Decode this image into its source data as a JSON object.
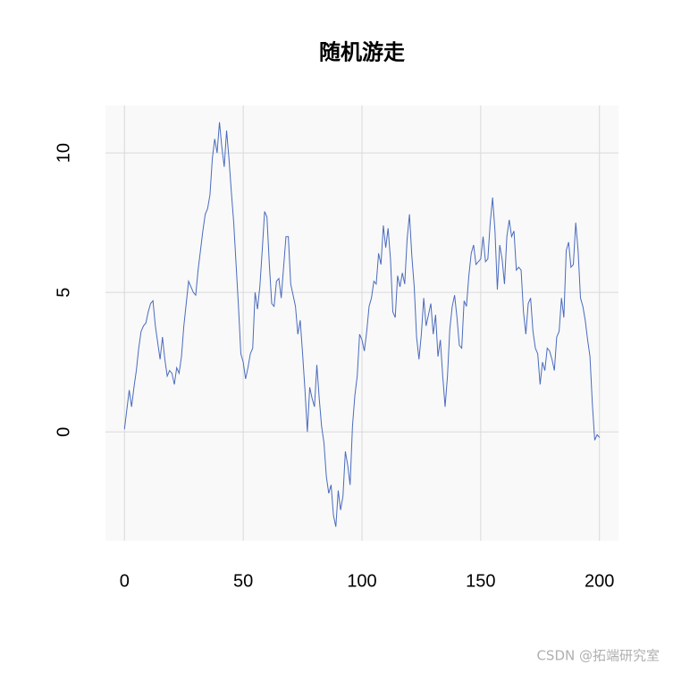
{
  "chart_data": {
    "type": "line",
    "title": "随机游走",
    "annotation": "CSDN @拓端研究室",
    "x": [
      0,
      1,
      2,
      3,
      4,
      5,
      6,
      7,
      8,
      9,
      10,
      11,
      12,
      13,
      14,
      15,
      16,
      17,
      18,
      19,
      20,
      21,
      22,
      23,
      24,
      25,
      26,
      27,
      28,
      29,
      30,
      31,
      32,
      33,
      34,
      35,
      36,
      37,
      38,
      39,
      40,
      41,
      42,
      43,
      44,
      45,
      46,
      47,
      48,
      49,
      50,
      51,
      52,
      53,
      54,
      55,
      56,
      57,
      58,
      59,
      60,
      61,
      62,
      63,
      64,
      65,
      66,
      67,
      68,
      69,
      70,
      71,
      72,
      73,
      74,
      75,
      76,
      77,
      78,
      79,
      80,
      81,
      82,
      83,
      84,
      85,
      86,
      87,
      88,
      89,
      90,
      91,
      92,
      93,
      94,
      95,
      96,
      97,
      98,
      99,
      100,
      101,
      102,
      103,
      104,
      105,
      106,
      107,
      108,
      109,
      110,
      111,
      112,
      113,
      114,
      115,
      116,
      117,
      118,
      119,
      120,
      121,
      122,
      123,
      124,
      125,
      126,
      127,
      128,
      129,
      130,
      131,
      132,
      133,
      134,
      135,
      136,
      137,
      138,
      139,
      140,
      141,
      142,
      143,
      144,
      145,
      146,
      147,
      148,
      149,
      150,
      151,
      152,
      153,
      154,
      155,
      156,
      157,
      158,
      159,
      160,
      161,
      162,
      163,
      164,
      165,
      166,
      167,
      168,
      169,
      170,
      171,
      172,
      173,
      174,
      175,
      176,
      177,
      178,
      179,
      180,
      181,
      182,
      183,
      184,
      185,
      186,
      187,
      188,
      189,
      190,
      191,
      192,
      193,
      194,
      195,
      196,
      197,
      198,
      199,
      200
    ],
    "series": [
      {
        "color": "#4a6bbd",
        "values": [
          0.1,
          0.8,
          1.5,
          0.9,
          1.6,
          2.2,
          3.0,
          3.6,
          3.8,
          3.9,
          4.3,
          4.6,
          4.7,
          3.8,
          3.2,
          2.6,
          3.4,
          2.6,
          2.0,
          2.2,
          2.1,
          1.7,
          2.3,
          2.1,
          2.7,
          3.8,
          4.6,
          5.4,
          5.2,
          5.0,
          4.9,
          5.8,
          6.5,
          7.2,
          7.8,
          8.0,
          8.5,
          9.8,
          10.5,
          10.0,
          11.1,
          10.2,
          9.5,
          10.8,
          9.8,
          8.6,
          7.5,
          6.0,
          4.5,
          2.8,
          2.5,
          1.9,
          2.3,
          2.8,
          3.0,
          5.0,
          4.4,
          5.2,
          6.5,
          7.9,
          7.7,
          6.0,
          4.6,
          4.5,
          5.4,
          5.5,
          4.8,
          5.9,
          7.0,
          7.0,
          5.3,
          4.9,
          4.5,
          3.5,
          4.0,
          2.8,
          1.5,
          0.0,
          1.6,
          1.2,
          0.9,
          2.4,
          1.2,
          0.2,
          -0.4,
          -1.6,
          -2.2,
          -1.9,
          -3.0,
          -3.4,
          -2.1,
          -2.8,
          -2.3,
          -0.7,
          -1.2,
          -1.9,
          0.2,
          1.3,
          2.0,
          3.5,
          3.3,
          2.9,
          3.6,
          4.5,
          4.8,
          5.4,
          5.3,
          6.4,
          6.0,
          7.4,
          6.6,
          7.3,
          6.2,
          4.3,
          4.1,
          5.6,
          5.2,
          5.7,
          5.3,
          6.9,
          7.8,
          6.3,
          5.2,
          3.4,
          2.6,
          3.5,
          4.8,
          3.8,
          4.2,
          4.6,
          3.5,
          4.2,
          2.7,
          3.3,
          2.0,
          0.9,
          2.0,
          3.7,
          4.5,
          4.9,
          4.1,
          3.1,
          3.0,
          4.7,
          4.5,
          5.6,
          6.4,
          6.7,
          6.0,
          6.1,
          6.2,
          7.0,
          6.1,
          6.2,
          7.5,
          8.4,
          7.2,
          5.1,
          6.7,
          6.2,
          5.3,
          7.0,
          7.6,
          7.0,
          7.2,
          5.8,
          5.9,
          5.8,
          4.3,
          3.5,
          4.6,
          4.8,
          3.6,
          3.0,
          2.8,
          1.7,
          2.5,
          2.2,
          3.0,
          2.9,
          2.6,
          2.2,
          3.4,
          3.6,
          4.8,
          4.1,
          6.5,
          6.8,
          5.9,
          6.0,
          7.5,
          6.5,
          4.8,
          4.5,
          4.0,
          3.3,
          2.7,
          1.0,
          -0.3,
          -0.1,
          -0.2
        ]
      }
    ],
    "xlim": [
      -8,
      208
    ],
    "ylim": [
      -3.9,
      11.7
    ],
    "xticks": [
      0,
      50,
      100,
      150,
      200
    ],
    "yticks": [
      0,
      5,
      10
    ],
    "grid": true
  }
}
